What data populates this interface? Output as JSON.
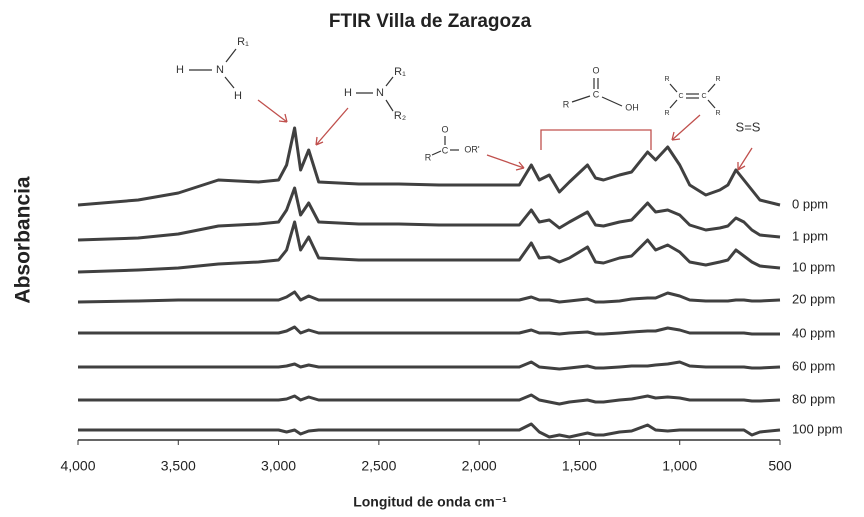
{
  "chart_data": {
    "type": "line",
    "title": "FTIR Villa de Zaragoza",
    "x_label": "Longitud de onda cm⁻¹",
    "y_label": "Absorbancia",
    "xlim": [
      4000,
      500
    ],
    "ylim": [
      0,
      330
    ],
    "xticks": [
      {
        "value": 4000,
        "label": "4,000"
      },
      {
        "value": 3500,
        "label": "3,500"
      },
      {
        "value": 3000,
        "label": "3,000"
      },
      {
        "value": 2500,
        "label": "2,500"
      },
      {
        "value": 2000,
        "label": "2,000"
      },
      {
        "value": 1500,
        "label": "1,500"
      },
      {
        "value": 1000,
        "label": "1,000"
      },
      500
    ],
    "annotations": [
      "H",
      "N",
      "R₁",
      "H",
      "H",
      "N",
      "R₁",
      "R₂",
      "O",
      "R",
      "C",
      "OR'",
      "O",
      "R",
      "C",
      "OH",
      "R",
      "R",
      "C",
      "C",
      "R",
      "R",
      "S=S"
    ],
    "x": [
      4000,
      3700,
      3500,
      3300,
      3100,
      3000,
      2960,
      2920,
      2890,
      2850,
      2800,
      2600,
      2400,
      2200,
      2000,
      1800,
      1740,
      1700,
      1650,
      1600,
      1550,
      1460,
      1420,
      1380,
      1300,
      1240,
      1160,
      1120,
      1060,
      1000,
      950,
      870,
      800,
      760,
      720,
      680,
      640,
      600,
      500
    ],
    "series": [
      {
        "name": "0 ppm",
        "color": "#404040",
        "values": [
          235,
          240,
          247,
          260,
          258,
          260,
          275,
          312,
          270,
          290,
          258,
          256,
          256,
          255,
          255,
          255,
          275,
          260,
          265,
          248,
          258,
          275,
          262,
          260,
          265,
          268,
          288,
          280,
          293,
          275,
          255,
          245,
          250,
          255,
          270,
          260,
          250,
          240,
          235
        ]
      },
      {
        "name": "1 ppm",
        "color": "#404040",
        "values": [
          200,
          202,
          206,
          214,
          216,
          218,
          230,
          252,
          225,
          237,
          218,
          216,
          216,
          215,
          215,
          215,
          230,
          218,
          220,
          212,
          218,
          228,
          215,
          214,
          218,
          220,
          237,
          228,
          230,
          225,
          215,
          210,
          212,
          214,
          222,
          218,
          210,
          205,
          203
        ]
      },
      {
        "name": "10 ppm",
        "color": "#404040",
        "values": [
          168,
          170,
          172,
          176,
          178,
          180,
          190,
          218,
          190,
          203,
          182,
          180,
          180,
          180,
          180,
          180,
          197,
          182,
          183,
          178,
          182,
          193,
          178,
          177,
          182,
          184,
          200,
          190,
          195,
          188,
          178,
          175,
          178,
          180,
          190,
          184,
          178,
          174,
          172
        ]
      },
      {
        "name": "20 ppm",
        "color": "#404040",
        "values": [
          138,
          139,
          140,
          140,
          140,
          140,
          143,
          148,
          140,
          144,
          140,
          140,
          140,
          140,
          140,
          140,
          143,
          140,
          140,
          138,
          139,
          141,
          138,
          138,
          139,
          141,
          142,
          142,
          147,
          144,
          140,
          139,
          139,
          139,
          140,
          140,
          139,
          139,
          140
        ]
      },
      {
        "name": "40 ppm",
        "color": "#404040",
        "values": [
          107,
          107,
          107,
          107,
          107,
          107,
          109,
          113,
          107,
          110,
          107,
          107,
          107,
          107,
          107,
          107,
          110,
          107,
          107,
          106,
          107,
          108,
          106,
          106,
          107,
          108,
          109,
          109,
          112,
          110,
          107,
          107,
          107,
          107,
          107,
          107,
          106,
          106,
          106
        ]
      },
      {
        "name": "60 ppm",
        "color": "#404040",
        "values": [
          73,
          73,
          73,
          73,
          73,
          73,
          74,
          76,
          73,
          75,
          73,
          73,
          73,
          73,
          73,
          73,
          78,
          73,
          72,
          71,
          72,
          74,
          72,
          72,
          73,
          74,
          74,
          75,
          76,
          78,
          74,
          73,
          73,
          73,
          73,
          73,
          72,
          72,
          73
        ]
      },
      {
        "name": "80 ppm",
        "color": "#404040",
        "values": [
          40,
          40,
          40,
          40,
          40,
          40,
          41,
          44,
          40,
          43,
          40,
          40,
          40,
          40,
          40,
          40,
          45,
          40,
          38,
          36,
          38,
          40,
          38,
          38,
          40,
          41,
          44,
          42,
          43,
          42,
          40,
          40,
          40,
          40,
          40,
          40,
          39,
          39,
          40
        ]
      },
      {
        "name": "100 ppm",
        "color": "#404040",
        "values": [
          10,
          10,
          10,
          10,
          10,
          10,
          8,
          10,
          6,
          9,
          10,
          10,
          10,
          10,
          10,
          10,
          16,
          8,
          3,
          5,
          3,
          7,
          5,
          5,
          8,
          9,
          15,
          10,
          9,
          10,
          10,
          10,
          10,
          10,
          10,
          10,
          5,
          8,
          10
        ]
      }
    ]
  }
}
